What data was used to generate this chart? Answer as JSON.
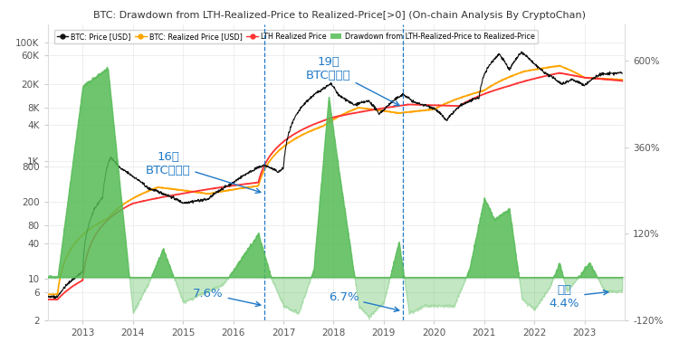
{
  "title": "BTC: Drawdown from LTH-Realized-Price to Realized-Price[>0] (On-chain Analysis By CryptoChan)",
  "left_yticks": [
    2,
    6,
    10,
    40,
    80,
    200,
    800,
    1000,
    4000,
    8000,
    20000,
    60000,
    100000
  ],
  "left_yticklabels": [
    "2",
    "6",
    "10",
    "40",
    "80",
    "200",
    "800",
    "1K",
    "4K",
    "8K",
    "20K",
    "60K",
    "100K"
  ],
  "right_yticks": [
    -120,
    120,
    360,
    600
  ],
  "right_yticklabels": [
    "-120%",
    "120%",
    "360%",
    "600%"
  ],
  "xlim": [
    2012.3,
    2023.8
  ],
  "xticks": [
    2013,
    2014,
    2015,
    2016,
    2017,
    2018,
    2019,
    2020,
    2021,
    2022,
    2023
  ],
  "ylim_left": [
    2,
    200000
  ],
  "ylim_right": [
    -120,
    700
  ],
  "vline1_x": 2016.62,
  "vline2_x": 2019.38,
  "ann16_text": "16年\nBTC小牛顶",
  "ann19_text": "19年\nBTC小牛顶",
  "pct76_text": "7.6%",
  "pct67_text": "6.7%",
  "ann_current_text": "当前\n4.4%",
  "ann_color": "#2079C7",
  "btc_color": "#111111",
  "realized_color": "#FFA500",
  "lth_color": "#FF3333",
  "green_color": "#55BB55",
  "legend_labels": [
    "BTC: Price [USD]",
    "BTC: Realized Price [USD]",
    "LTH Realized Price",
    "Drawdown from LTH-Realized-Price to Realized-Price"
  ]
}
